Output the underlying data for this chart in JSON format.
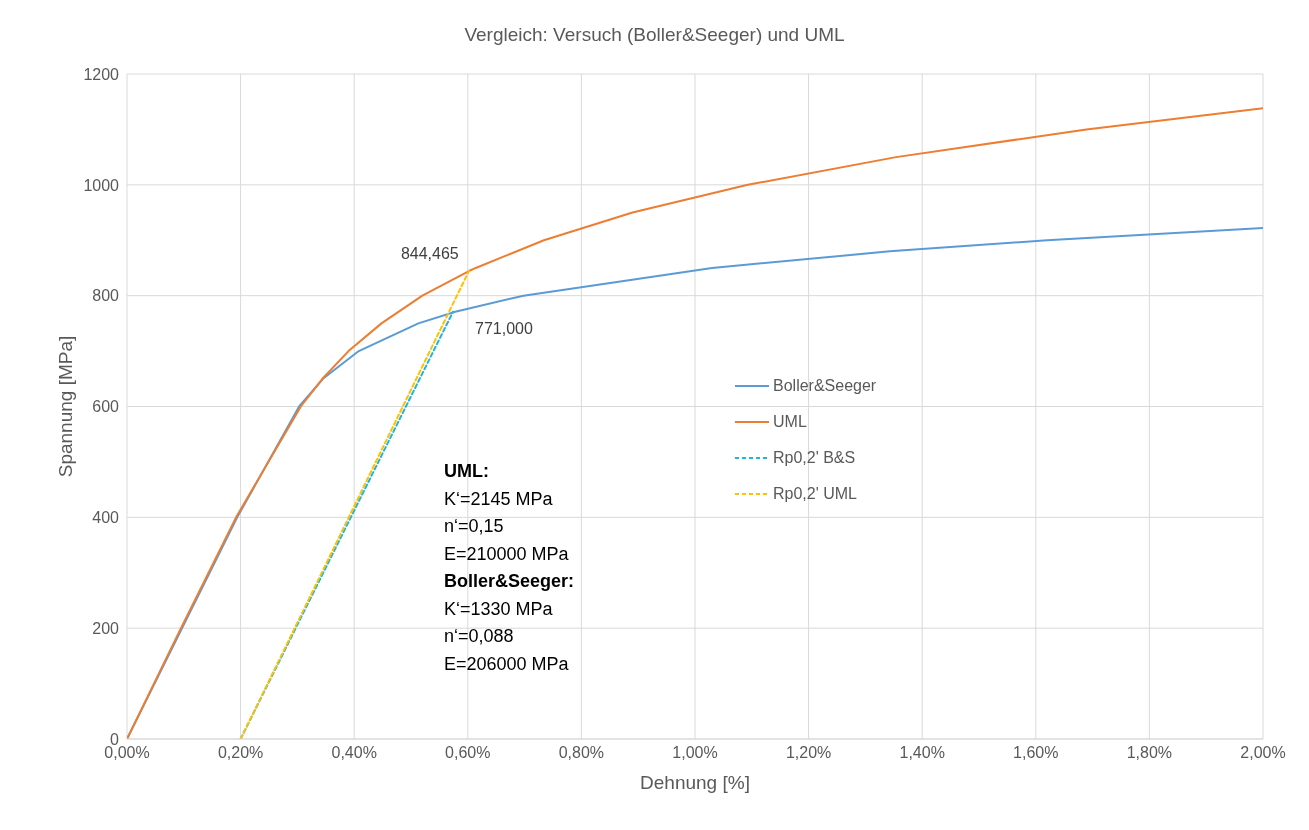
{
  "chart_data": {
    "type": "line",
    "title": "Vergleich: Versuch (Boller&Seeger) und UML",
    "xlabel": "Dehnung [%]",
    "ylabel": "Spannung [MPa]",
    "series": [
      {
        "name": "Boller&Seeger",
        "color": "#5b9bd5",
        "x": [
          0,
          0.097,
          0.194,
          0.303,
          0.345,
          0.408,
          0.513,
          0.578,
          0.698,
          1.03,
          1.343,
          1.62,
          2.0
        ],
        "values": [
          0,
          200,
          400,
          600,
          650,
          700,
          750,
          771,
          800,
          850,
          880,
          900,
          922
        ]
      },
      {
        "name": "UML",
        "color": "#ed7d31",
        "x": [
          0,
          0.095,
          0.192,
          0.306,
          0.344,
          0.39,
          0.448,
          0.52,
          0.602,
          0.614,
          0.734,
          0.89,
          1.093,
          1.354,
          1.689,
          2.0
        ],
        "values": [
          0,
          200,
          400,
          600,
          650,
          700,
          750,
          800,
          844.465,
          850,
          900,
          950,
          1000,
          1050,
          1100,
          1138
        ]
      },
      {
        "name": "Rp0,2' B&S",
        "color": "#1fb5e0",
        "line_style": "dashed",
        "x": [
          0.2,
          0.574
        ],
        "values": [
          0,
          771
        ],
        "value_labels": [
          null,
          "771,000"
        ]
      },
      {
        "name": "Rp0,2' UML",
        "color": "#ffc000",
        "line_style": "dashed",
        "x": [
          0.2,
          0.602
        ],
        "values": [
          0,
          844.465
        ],
        "value_labels": [
          null,
          "844,465"
        ]
      }
    ],
    "xlim": [
      0,
      2
    ],
    "xticks": [
      {
        "value": 0,
        "label": "0,00%"
      },
      {
        "value": 0.2,
        "label": "0,20%"
      },
      {
        "value": 0.4,
        "label": "0,40%"
      },
      {
        "value": 0.6,
        "label": "0,60%"
      },
      {
        "value": 0.8,
        "label": "0,80%"
      },
      {
        "value": 1,
        "label": "1,00%"
      },
      {
        "value": 1.2,
        "label": "1,20%"
      },
      {
        "value": 1.4,
        "label": "1,40%"
      },
      {
        "value": 1.6,
        "label": "1,60%"
      },
      {
        "value": 1.8,
        "label": "1,80%"
      },
      {
        "value": 2,
        "label": "2,00%"
      }
    ],
    "ylim": [
      0,
      1200
    ],
    "yticks": [
      0,
      200,
      400,
      600,
      800,
      1000,
      1200
    ],
    "grid": true,
    "legend": "center",
    "marker": "none",
    "annotations": [
      "UML:",
      "K‘=2145 MPa",
      "n‘=0,15",
      "E=210000 MPa",
      "Boller&Seeger:",
      "K‘=1330 MPa",
      "n‘=0,088",
      "E=206000 MPa"
    ]
  }
}
